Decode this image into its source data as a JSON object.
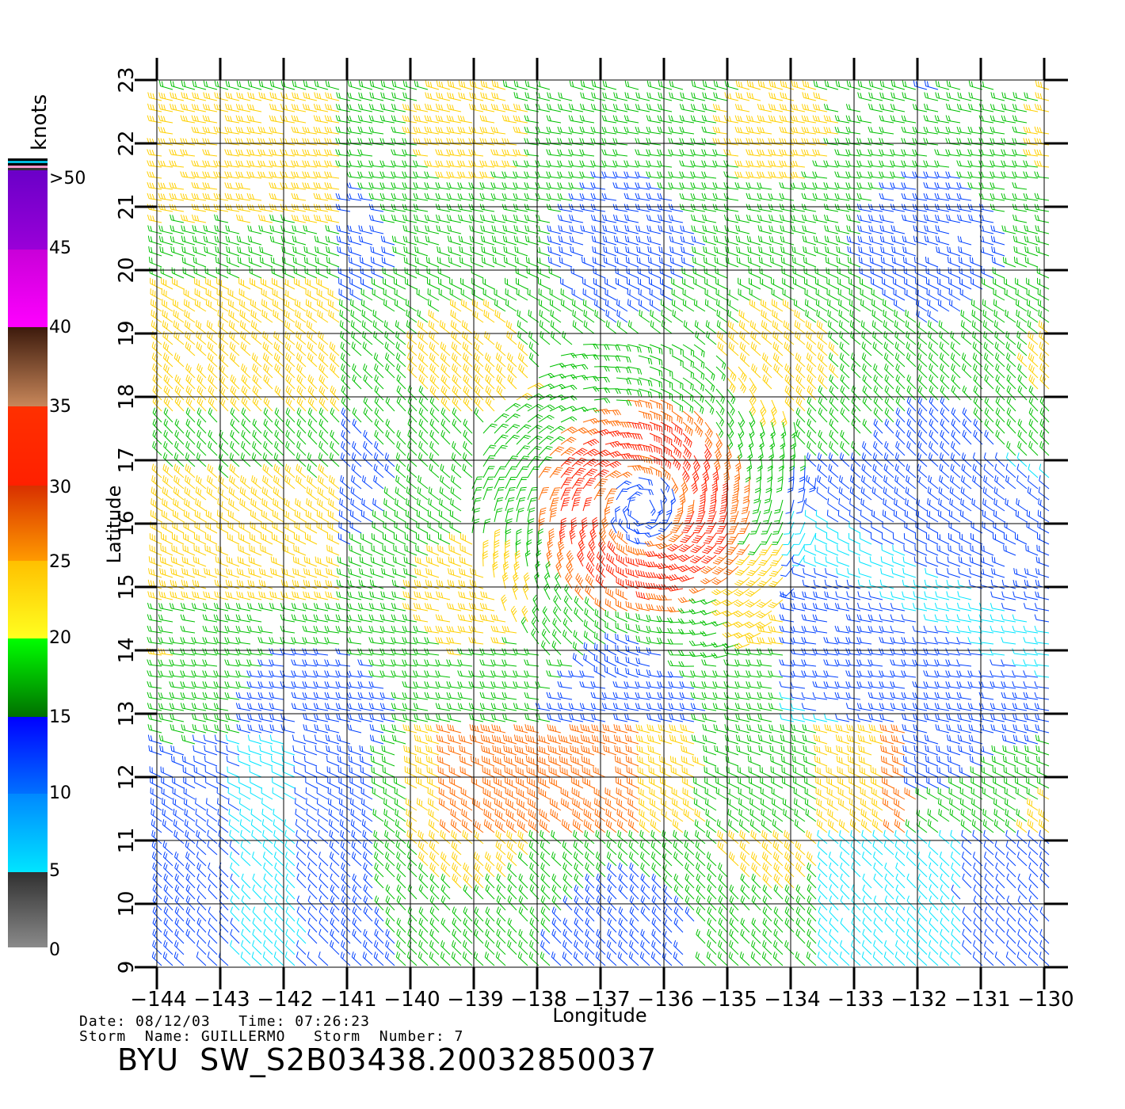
{
  "product_title": "BYU  SW_S2B03438.20032850037",
  "info": {
    "date_label": "Date:",
    "date": "08/12/03",
    "time_label": "Time:",
    "time": "07:26:23",
    "storm_name_label": "Storm  Name:",
    "storm_name": "GUILLERMO",
    "storm_number_label": "Storm  Number:",
    "storm_number": "7"
  },
  "legend": {
    "title": "knots",
    "labels": [
      ">50",
      "45",
      "40",
      "35",
      "30",
      "25",
      "20",
      "15",
      "10",
      "5",
      "0"
    ],
    "colors": {
      "0-5": "#808080",
      "5-10": "#00e5ff",
      "10-15": "#0040ff",
      "15-20": "#00c000",
      "20-25": "#ffd000",
      "25-30": "#ff6a00",
      "30-35": "#ff2000",
      "35-40": "#7a3c1e",
      "40-45": "#ff00ff",
      "45-50": "#6a00c8",
      "outline": "#000000"
    }
  },
  "map": {
    "x_axis_title": "Longitude",
    "y_axis_title": "Latitude",
    "lon_ticks": [
      "−144",
      "−143",
      "−142",
      "−141",
      "−140",
      "−139",
      "−138",
      "−137",
      "−136",
      "−135",
      "−134",
      "−133",
      "−132",
      "−131",
      "−130"
    ],
    "lat_ticks": [
      "9",
      "10",
      "11",
      "12",
      "13",
      "14",
      "15",
      "16",
      "17",
      "18",
      "19",
      "20",
      "21",
      "22",
      "23"
    ],
    "lon_range": [
      -144,
      -130
    ],
    "lat_range": [
      9,
      23
    ],
    "storm_center": {
      "lon": -136.3,
      "lat": 16.2
    }
  }
}
